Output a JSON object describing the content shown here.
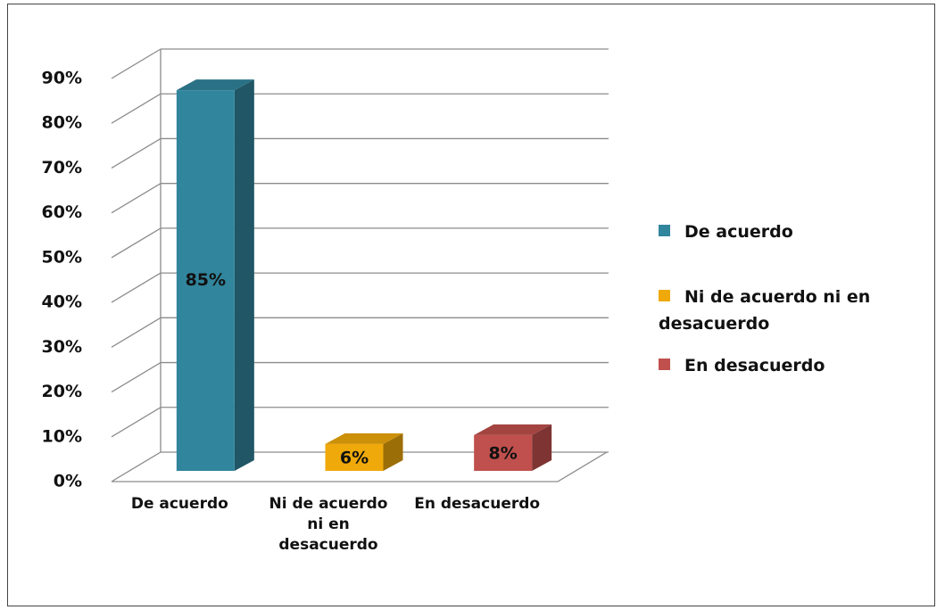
{
  "chart_data": {
    "type": "bar3d",
    "categories": [
      "De acuerdo",
      "Ni de acuerdo ni en desacuerdo",
      "En desacuerdo"
    ],
    "values": [
      85,
      6,
      8
    ],
    "value_labels": [
      "85%",
      "6%",
      "8%"
    ],
    "colors": [
      "#31859c",
      "#f0a90a",
      "#c0504d"
    ],
    "ylim": [
      0,
      90
    ],
    "yticks": [
      {
        "value": 0,
        "label": "0%"
      },
      {
        "value": 10,
        "label": "10%"
      },
      {
        "value": 20,
        "label": "20%"
      },
      {
        "value": 30,
        "label": "30%"
      },
      {
        "value": 40,
        "label": "40%"
      },
      {
        "value": 50,
        "label": "50%"
      },
      {
        "value": 60,
        "label": "60%"
      },
      {
        "value": 70,
        "label": "70%"
      },
      {
        "value": 80,
        "label": "80%"
      },
      {
        "value": 90,
        "label": "90%"
      }
    ],
    "grid": true,
    "legend": "right"
  }
}
